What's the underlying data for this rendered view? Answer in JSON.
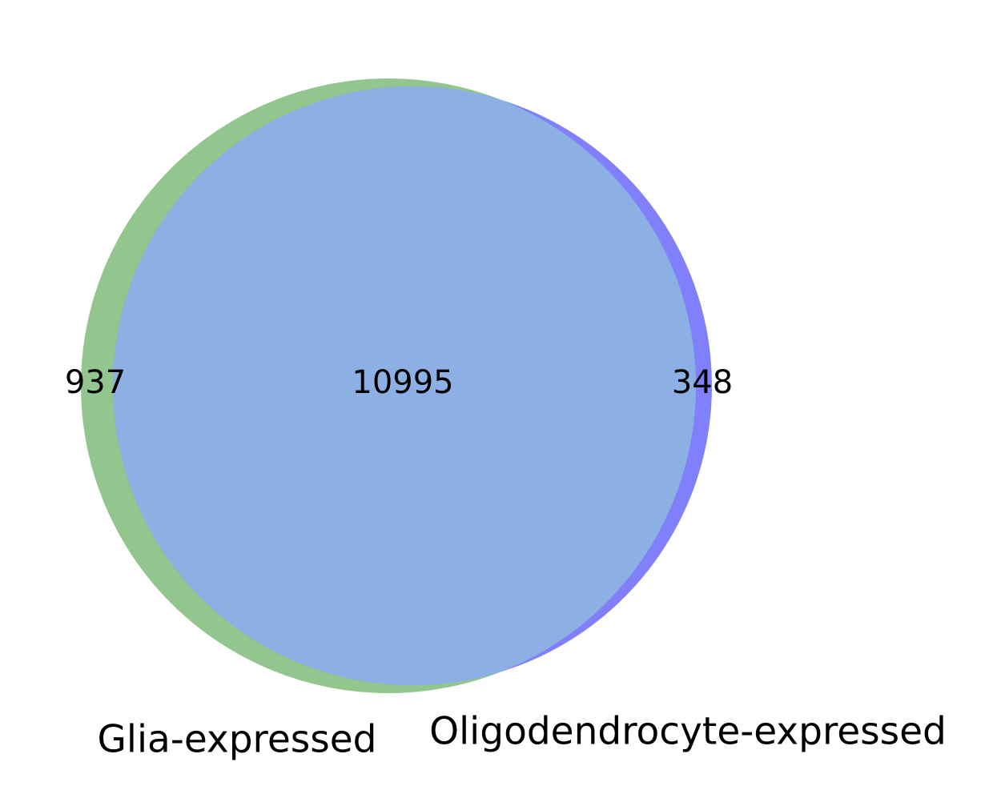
{
  "diagram": {
    "type": "venn2",
    "sets": [
      {
        "label": "Glia-expressed",
        "color": "#93c58f"
      },
      {
        "label": "Oligodendrocyte-expressed",
        "color": "#8080fc"
      }
    ],
    "overlap_color": "#8cb0e3",
    "regions": {
      "only_first": "937",
      "both": "10995",
      "only_second": "348"
    }
  }
}
